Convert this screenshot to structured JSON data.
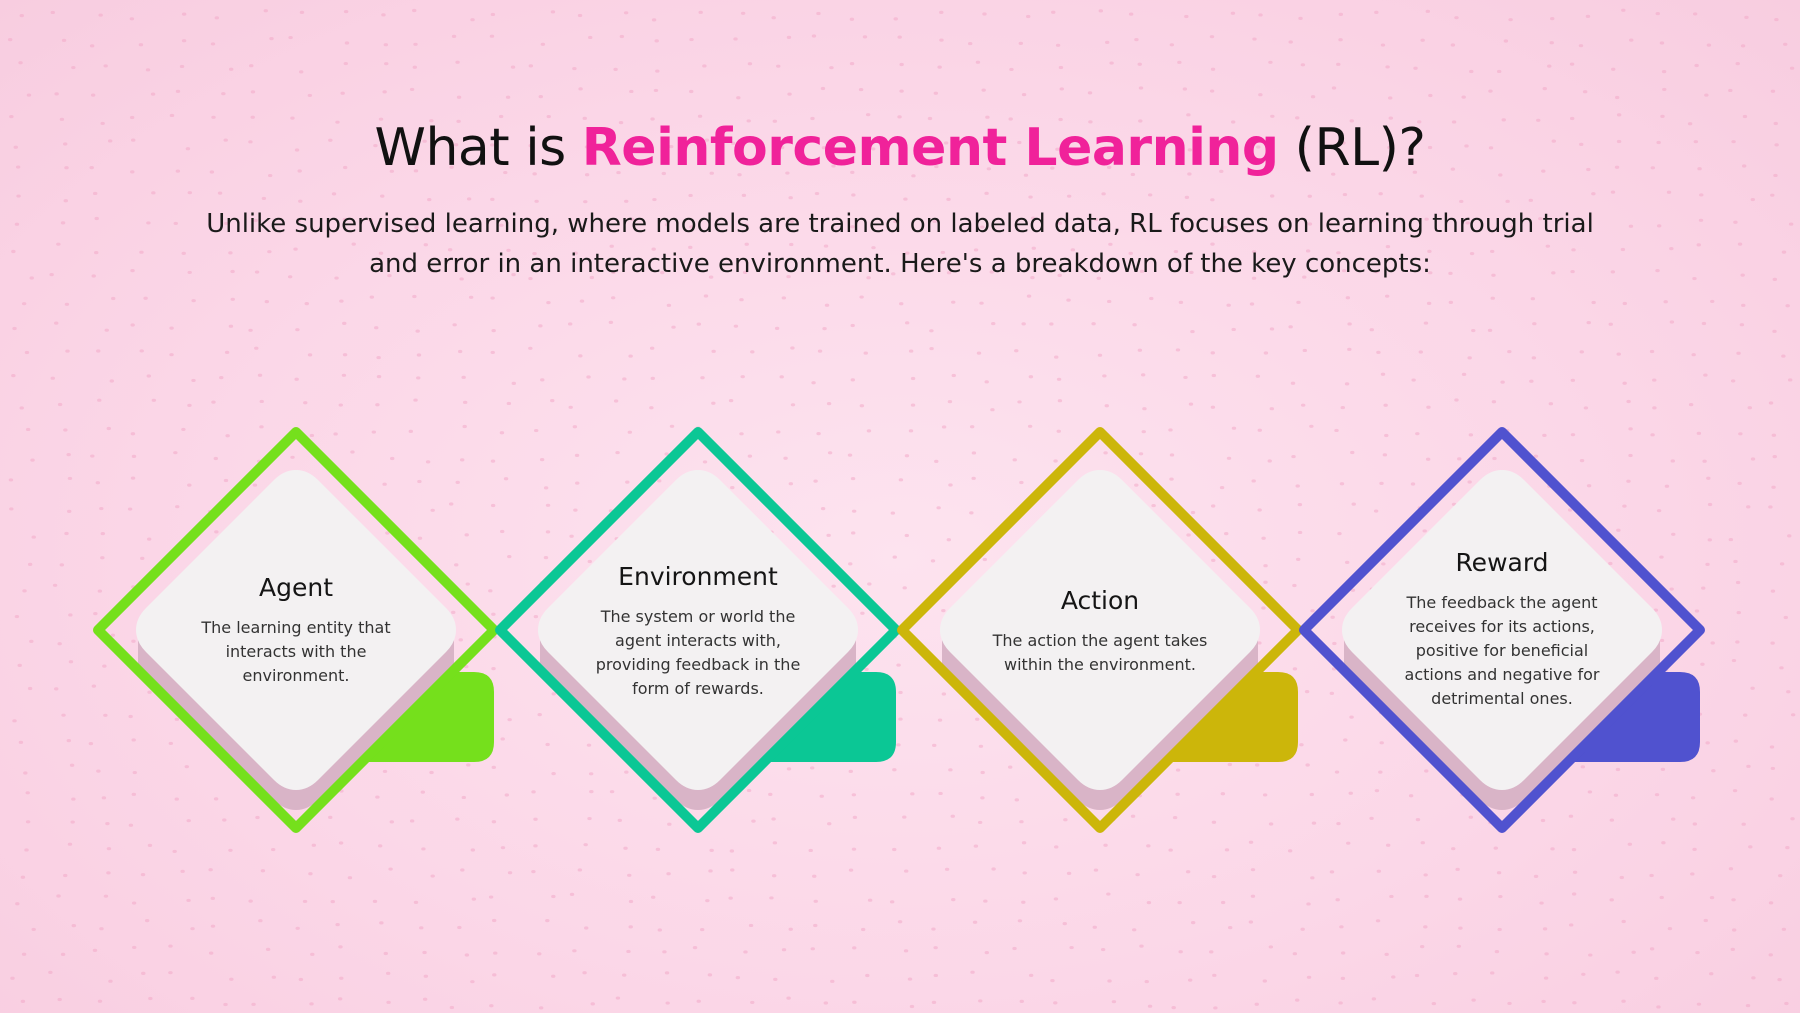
{
  "slide": {
    "title_prefix": "What is ",
    "title_highlight": "Reinforcement Learning",
    "title_suffix": " (RL)?",
    "subtitle": "Unlike supervised learning, where models are trained on labeled data, RL focuses on learning through trial and error in an interactive environment. Here's a breakdown of the key concepts:"
  },
  "concepts": [
    {
      "name": "Agent",
      "description": "The learning entity that interacts with the environment.",
      "color": "#75e01c"
    },
    {
      "name": "Environment",
      "description": "The system or world the agent interacts with, providing feedback in the form of rewards.",
      "color": "#0bc795"
    },
    {
      "name": "Action",
      "description": "The action the agent takes within the environment.",
      "color": "#ccb60a"
    },
    {
      "name": "Reward",
      "description": "The feedback the agent receives for its actions, positive for beneficial actions and negative for detrimental ones.",
      "color": "#5052cf"
    }
  ],
  "colors": {
    "highlight": "#f0229a",
    "background": "#fbd6e7"
  }
}
